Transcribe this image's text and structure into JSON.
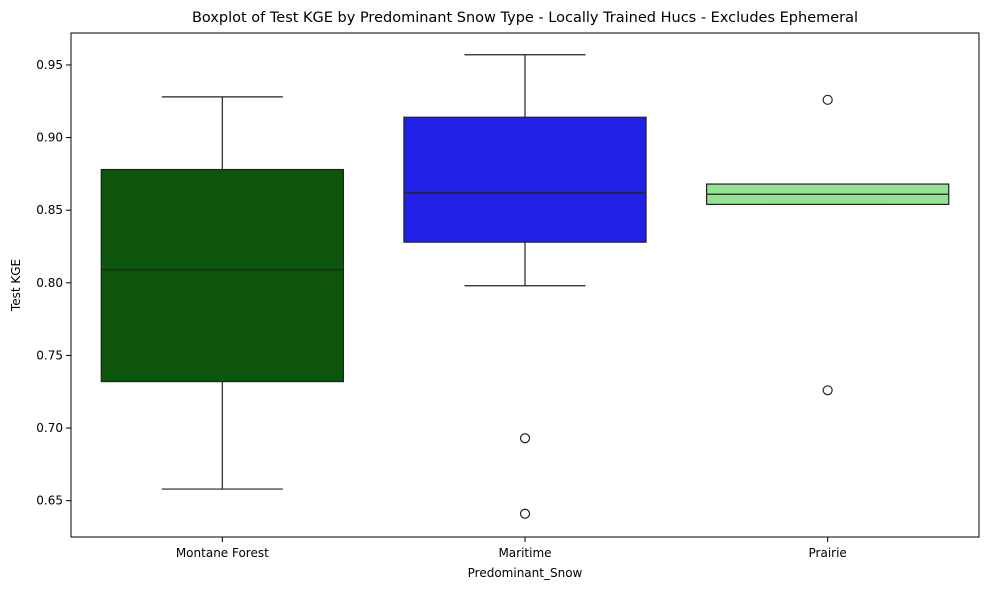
{
  "chart_data": {
    "type": "box",
    "title": "Boxplot of Test KGE by Predominant Snow Type - Locally Trained Hucs - Excludes Ephemeral",
    "xlabel": "Predominant_Snow",
    "ylabel": "Test KGE",
    "ylim": [
      0.625,
      0.972
    ],
    "yticks": [
      0.65,
      0.7,
      0.75,
      0.8,
      0.85,
      0.9,
      0.95
    ],
    "ytick_labels": [
      "0.65",
      "0.70",
      "0.75",
      "0.80",
      "0.85",
      "0.90",
      "0.95"
    ],
    "grid": false,
    "categories": [
      "Montane Forest",
      "Maritime",
      "Prairie"
    ],
    "boxes": [
      {
        "category": "Montane Forest",
        "whisker_low": 0.658,
        "q1": 0.732,
        "median": 0.809,
        "q3": 0.878,
        "whisker_high": 0.928,
        "outliers": [],
        "color": "#0d540d"
      },
      {
        "category": "Maritime",
        "whisker_low": 0.798,
        "q1": 0.828,
        "median": 0.862,
        "q3": 0.914,
        "whisker_high": 0.957,
        "outliers": [
          0.693,
          0.641
        ],
        "color": "#2020e6"
      },
      {
        "category": "Prairie",
        "whisker_low": 0.854,
        "q1": 0.854,
        "median": 0.861,
        "q3": 0.868,
        "whisker_high": 0.868,
        "outliers": [
          0.926,
          0.726
        ],
        "color": "#93e393"
      }
    ]
  }
}
